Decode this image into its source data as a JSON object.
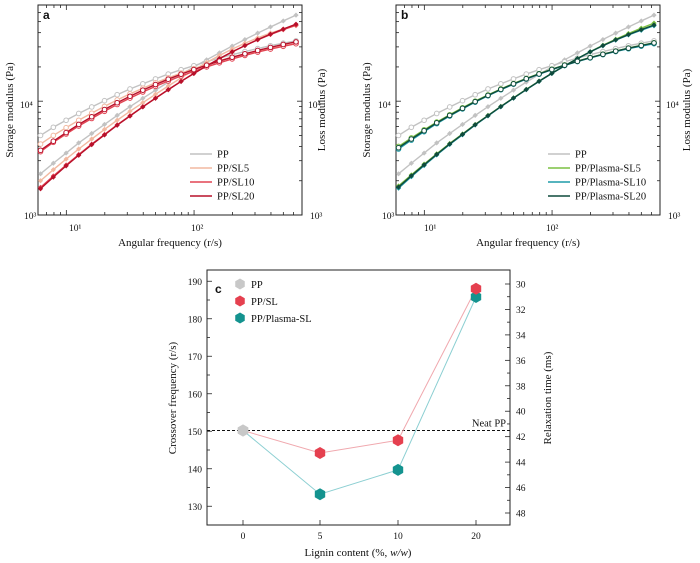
{
  "chart_data": [
    {
      "panel": "a",
      "type": "line",
      "xlabel": "Angular frequency (r/s)",
      "ylabel_left": "Storage modulus (Pa)",
      "ylabel_right": "Loss modulus (Pa)",
      "x_scale": "log",
      "y_scale": "log",
      "xlim": [
        6,
        700
      ],
      "ylim": [
        1000,
        70000
      ],
      "x_tick_labels": [
        "10¹",
        "10²"
      ],
      "y_tick_labels": [
        "10³",
        "10⁴"
      ],
      "y_right_tick_labels": [
        "10³",
        "10⁴"
      ],
      "legend": [
        "PP",
        "PP/SL5",
        "PP/SL10",
        "PP/SL20"
      ],
      "legend_position": "bottom-right",
      "colors": [
        "#c2c2c2",
        "#f2b8a0",
        "#e24553",
        "#b8102a"
      ],
      "x": [
        6.28,
        7.91,
        9.96,
        12.5,
        15.8,
        19.9,
        25.0,
        31.5,
        39.7,
        49.9,
        62.8,
        79.1,
        99.6,
        125.4,
        157.9,
        198.7,
        250.1,
        314.9,
        396.4,
        499.1,
        628.3
      ],
      "series": [
        {
          "name": "PP",
          "kind": "storage",
          "values": [
            2300,
            2850,
            3500,
            4300,
            5200,
            6250,
            7500,
            8950,
            10600,
            12500,
            14700,
            17200,
            20000,
            23100,
            26600,
            30500,
            34800,
            39600,
            44900,
            50700,
            57000
          ]
        },
        {
          "name": "PP",
          "kind": "loss",
          "values": [
            5000,
            5900,
            6800,
            7800,
            8900,
            10100,
            11400,
            12800,
            14200,
            15700,
            17300,
            18900,
            20500,
            22200,
            23900,
            25600,
            27300,
            29000,
            30700,
            32300,
            33900
          ]
        },
        {
          "name": "PP/SL5",
          "kind": "storage",
          "values": [
            2000,
            2500,
            3100,
            3800,
            4650,
            5650,
            6800,
            8150,
            9700,
            11500,
            13600,
            16000,
            18800,
            21900,
            25200,
            28700,
            32300,
            36000,
            39700,
            43000,
            46000
          ]
        },
        {
          "name": "PP/SL5",
          "kind": "loss",
          "values": [
            4200,
            5000,
            5850,
            6800,
            7850,
            9000,
            10250,
            11600,
            13000,
            14500,
            16050,
            17650,
            19300,
            21000,
            22700,
            24400,
            26000,
            27600,
            29200,
            30700,
            32000
          ]
        },
        {
          "name": "PP/SL10",
          "kind": "storage",
          "values": [
            1750,
            2200,
            2750,
            3400,
            4200,
            5100,
            6200,
            7450,
            8950,
            10650,
            12650,
            14950,
            17550,
            20450,
            23650,
            27100,
            30800,
            34600,
            38500,
            42400,
            46500
          ]
        },
        {
          "name": "PP/SL10",
          "kind": "loss",
          "values": [
            3600,
            4350,
            5150,
            6050,
            7050,
            8150,
            9350,
            10650,
            12050,
            13500,
            15050,
            16650,
            18300,
            20000,
            21750,
            23500,
            25250,
            27000,
            28700,
            30350,
            32000
          ]
        },
        {
          "name": "PP/SL20",
          "kind": "storage",
          "values": [
            1700,
            2150,
            2700,
            3350,
            4150,
            5050,
            6150,
            7400,
            8900,
            10600,
            12600,
            14900,
            17500,
            20400,
            23600,
            27100,
            30800,
            34700,
            38800,
            43000,
            47500
          ]
        },
        {
          "name": "PP/SL20",
          "kind": "loss",
          "values": [
            3700,
            4450,
            5300,
            6250,
            7300,
            8450,
            9700,
            11050,
            12500,
            14000,
            15600,
            17250,
            18950,
            20700,
            22500,
            24300,
            26100,
            27900,
            29700,
            31500,
            33200
          ]
        }
      ]
    },
    {
      "panel": "b",
      "type": "line",
      "xlabel": "Angular frequency (r/s)",
      "ylabel_left": "Storage modulus (Pa)",
      "ylabel_right": "Loss modulus (Pa)",
      "x_scale": "log",
      "y_scale": "log",
      "xlim": [
        6,
        700
      ],
      "ylim": [
        1000,
        70000
      ],
      "x_tick_labels": [
        "10¹",
        "10²"
      ],
      "y_tick_labels": [
        "10³",
        "10⁴"
      ],
      "y_right_tick_labels": [
        "10³",
        "10⁴"
      ],
      "legend": [
        "PP",
        "PP/Plasma-SL5",
        "PP/Plasma-SL10",
        "PP/Plasma-SL20"
      ],
      "legend_position": "bottom-right",
      "colors": [
        "#c2c2c2",
        "#7cc142",
        "#1e9ba8",
        "#0f4a3c"
      ],
      "x": [
        6.28,
        7.91,
        9.96,
        12.5,
        15.8,
        19.9,
        25.0,
        31.5,
        39.7,
        49.9,
        62.8,
        79.1,
        99.6,
        125.4,
        157.9,
        198.7,
        250.1,
        314.9,
        396.4,
        499.1,
        628.3
      ],
      "series": [
        {
          "name": "PP",
          "kind": "storage",
          "values": [
            2300,
            2850,
            3500,
            4300,
            5200,
            6250,
            7500,
            8950,
            10600,
            12500,
            14700,
            17200,
            20000,
            23100,
            26600,
            30500,
            34800,
            39600,
            44900,
            50700,
            57000
          ]
        },
        {
          "name": "PP",
          "kind": "loss",
          "values": [
            5000,
            5900,
            6800,
            7800,
            8900,
            10100,
            11400,
            12800,
            14200,
            15700,
            17300,
            18900,
            20500,
            22200,
            23900,
            25600,
            27300,
            29000,
            30700,
            32300,
            33900
          ]
        },
        {
          "name": "PP/Plasma-SL5",
          "kind": "storage",
          "values": [
            1800,
            2250,
            2800,
            3450,
            4250,
            5150,
            6250,
            7500,
            9000,
            10700,
            12700,
            15000,
            17600,
            20500,
            23700,
            27200,
            31000,
            35000,
            39300,
            43800,
            48500
          ]
        },
        {
          "name": "PP/Plasma-SL5",
          "kind": "loss",
          "values": [
            4000,
            4750,
            5600,
            6550,
            7600,
            8750,
            10000,
            11350,
            12800,
            14300,
            15850,
            17450,
            19100,
            20800,
            22500,
            24200,
            25900,
            27600,
            29300,
            31000,
            32600
          ]
        },
        {
          "name": "PP/Plasma-SL10",
          "kind": "storage",
          "values": [
            1720,
            2170,
            2720,
            3370,
            4170,
            5070,
            6170,
            7420,
            8920,
            10620,
            12620,
            14920,
            17520,
            20420,
            23620,
            27100,
            30700,
            34400,
            38200,
            42000,
            46000
          ]
        },
        {
          "name": "PP/Plasma-SL10",
          "kind": "loss",
          "values": [
            3800,
            4550,
            5400,
            6350,
            7400,
            8550,
            9800,
            11150,
            12600,
            14100,
            15650,
            17250,
            18900,
            20600,
            22300,
            24000,
            25650,
            27300,
            28900,
            30450,
            32000
          ]
        },
        {
          "name": "PP/Plasma-SL20",
          "kind": "storage",
          "values": [
            1760,
            2210,
            2760,
            3410,
            4210,
            5110,
            6210,
            7460,
            8960,
            10660,
            12660,
            14960,
            17560,
            20460,
            23660,
            27150,
            30800,
            34600,
            38500,
            42500,
            46700
          ]
        },
        {
          "name": "PP/Plasma-SL20",
          "kind": "loss",
          "values": [
            3900,
            4650,
            5500,
            6450,
            7500,
            8650,
            9900,
            11250,
            12700,
            14200,
            15750,
            17350,
            19000,
            20700,
            22400,
            24100,
            25800,
            27500,
            29200,
            30850,
            32500
          ]
        }
      ]
    },
    {
      "panel": "c",
      "type": "scatter",
      "xlabel": "Lignin content (%, w/w)",
      "xlabel_parts": [
        "Lignin content (%, ",
        "w/w",
        ")"
      ],
      "ylabel": "Crossover frequency (r/s)",
      "ylabel_right": "Relaxation time (ms)",
      "x": [
        0,
        5,
        10,
        20
      ],
      "x_tick_labels": [
        "0",
        "5",
        "10",
        "20"
      ],
      "ylim": [
        125,
        193
      ],
      "y_ticks": [
        130,
        140,
        150,
        160,
        170,
        180,
        190
      ],
      "y_right_ticks": [
        30,
        32,
        34,
        36,
        38,
        40,
        42,
        44,
        46,
        48
      ],
      "reference_line": {
        "y": 150.2,
        "label": "Neat PP"
      },
      "legend": [
        "PP",
        "PP/SL",
        "PP/Plasma-SL"
      ],
      "legend_position": "top-left",
      "marker": "hexagon",
      "series": [
        {
          "name": "PP",
          "color": "#c8c8c8",
          "x": [
            0
          ],
          "values": [
            150.2
          ]
        },
        {
          "name": "PP/SL",
          "color": "#e5404f",
          "x": [
            0,
            5,
            10,
            20
          ],
          "values": [
            150.2,
            144.2,
            147.6,
            188.0
          ]
        },
        {
          "name": "PP/Plasma-SL",
          "color": "#14938f",
          "x": [
            0,
            5,
            10,
            20
          ],
          "values": [
            150.2,
            133.2,
            139.7,
            185.8
          ]
        }
      ]
    }
  ]
}
